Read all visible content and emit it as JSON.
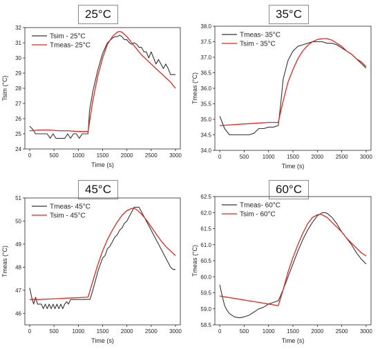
{
  "chart_data": [
    {
      "type": "line",
      "title": "25°C",
      "xlabel": "Time (s)",
      "ylabel": "Tsim (°C)",
      "xlim": [
        -100,
        3100
      ],
      "ylim": [
        24,
        32
      ],
      "xticks": [
        0,
        500,
        1000,
        1500,
        2000,
        2500,
        3000
      ],
      "yticks": [
        24,
        25,
        26,
        27,
        28,
        29,
        30,
        31,
        32
      ],
      "legend_position": "top-left",
      "series": [
        {
          "name": "Tsim - 25°C",
          "color": "#333333",
          "x": [
            0,
            60,
            120,
            180,
            240,
            300,
            360,
            420,
            480,
            540,
            600,
            660,
            720,
            780,
            840,
            900,
            960,
            1020,
            1080,
            1140,
            1200,
            1230,
            1300,
            1400,
            1500,
            1600,
            1700,
            1750,
            1800,
            1850,
            1900,
            1950,
            2000,
            2050,
            2100,
            2150,
            2200,
            2250,
            2300,
            2350,
            2400,
            2450,
            2500,
            2550,
            2600,
            2650,
            2700,
            2750,
            2800,
            2850,
            2900,
            2950,
            3000
          ],
          "y": [
            25.5,
            25.3,
            25.0,
            25.0,
            25.0,
            25.0,
            25.0,
            24.7,
            25.0,
            24.7,
            24.7,
            24.7,
            24.7,
            25.0,
            24.7,
            25.0,
            25.0,
            24.7,
            25.0,
            25.0,
            25.0,
            26.5,
            27.8,
            29.2,
            30.3,
            31.0,
            31.3,
            31.4,
            31.4,
            31.5,
            31.4,
            31.2,
            31.2,
            31.0,
            30.9,
            31.0,
            30.9,
            30.7,
            30.7,
            30.4,
            30.4,
            30.0,
            30.4,
            30.0,
            29.6,
            29.9,
            29.6,
            29.3,
            29.6,
            29.3,
            28.9,
            28.9,
            28.9
          ]
        },
        {
          "name": "Tmeas- 25°C",
          "color": "#e8231f",
          "x": [
            0,
            200,
            400,
            600,
            800,
            1000,
            1200,
            1300,
            1400,
            1500,
            1600,
            1700,
            1800,
            1850,
            1900,
            2000,
            2100,
            2200,
            2300,
            2400,
            2500,
            2600,
            2700,
            2800,
            2900,
            3000
          ],
          "y": [
            25.2,
            25.25,
            25.25,
            25.2,
            25.2,
            25.15,
            25.15,
            27.2,
            28.8,
            30.0,
            30.9,
            31.4,
            31.7,
            31.75,
            31.7,
            31.4,
            31.0,
            30.6,
            30.2,
            29.9,
            29.6,
            29.3,
            29.0,
            28.7,
            28.4,
            28.0
          ]
        }
      ]
    },
    {
      "type": "line",
      "title": "35°C",
      "xlabel": "Time (s)",
      "ylabel": "Tmeas (°C)",
      "xlim": [
        -100,
        3100
      ],
      "ylim": [
        34.0,
        38.0
      ],
      "xticks": [
        0,
        500,
        1000,
        1500,
        2000,
        2500,
        3000
      ],
      "yticks": [
        34.0,
        34.5,
        35.0,
        35.5,
        36.0,
        36.5,
        37.0,
        37.5,
        38.0
      ],
      "legend_position": "top-left",
      "series": [
        {
          "name": "Tmeas- 35°C",
          "color": "#333333",
          "x": [
            0,
            50,
            100,
            150,
            200,
            300,
            400,
            500,
            600,
            700,
            800,
            900,
            1000,
            1100,
            1200,
            1250,
            1300,
            1400,
            1500,
            1600,
            1700,
            1800,
            1900,
            2000,
            2100,
            2200,
            2300,
            2400,
            2500,
            2600,
            2700,
            2800,
            2900,
            3000
          ],
          "y": [
            35.1,
            34.9,
            34.7,
            34.6,
            34.5,
            34.5,
            34.5,
            34.5,
            34.5,
            34.55,
            34.7,
            34.7,
            34.75,
            34.75,
            34.8,
            35.5,
            36.3,
            36.9,
            37.2,
            37.35,
            37.4,
            37.45,
            37.5,
            37.5,
            37.5,
            37.45,
            37.45,
            37.4,
            37.3,
            37.2,
            37.1,
            36.95,
            36.8,
            36.65
          ]
        },
        {
          "name": "Tsim - 35°C",
          "color": "#e8231f",
          "x": [
            0,
            200,
            400,
            600,
            800,
            1000,
            1200,
            1300,
            1400,
            1500,
            1600,
            1700,
            1800,
            1900,
            2000,
            2100,
            2150,
            2200,
            2300,
            2400,
            2500,
            2600,
            2700,
            2800,
            2900,
            3000
          ],
          "y": [
            34.8,
            34.82,
            34.84,
            34.86,
            34.88,
            34.9,
            34.9,
            35.6,
            36.2,
            36.6,
            36.95,
            37.2,
            37.38,
            37.5,
            37.57,
            37.6,
            37.6,
            37.6,
            37.55,
            37.45,
            37.35,
            37.2,
            37.1,
            36.95,
            36.85,
            36.7
          ]
        }
      ]
    },
    {
      "type": "line",
      "title": "45°C",
      "xlabel": "Time (s)",
      "ylabel": "Tmeas (°C)",
      "xlim": [
        -100,
        3100
      ],
      "ylim": [
        45.5,
        51
      ],
      "xticks": [
        0,
        500,
        1000,
        1500,
        2000,
        2500,
        3000
      ],
      "yticks": [
        46,
        47,
        48,
        49,
        50,
        51
      ],
      "legend_position": "top-left",
      "series": [
        {
          "name": "Tmeas- 45°C",
          "color": "#333333",
          "x": [
            0,
            40,
            80,
            120,
            160,
            200,
            240,
            280,
            320,
            360,
            400,
            440,
            480,
            520,
            560,
            600,
            640,
            680,
            720,
            760,
            800,
            840,
            880,
            920,
            960,
            1000,
            1040,
            1080,
            1120,
            1160,
            1200,
            1240,
            1300,
            1350,
            1400,
            1450,
            1500,
            1550,
            1600,
            1650,
            1700,
            1750,
            1800,
            1850,
            1900,
            1950,
            2000,
            2050,
            2100,
            2150,
            2200,
            2250,
            2300,
            2350,
            2400,
            2450,
            2500,
            2550,
            2600,
            2650,
            2700,
            2750,
            2800,
            2850,
            2900,
            2950,
            3000
          ],
          "y": [
            47.1,
            46.7,
            46.4,
            46.7,
            46.4,
            46.4,
            46.4,
            46.2,
            46.4,
            46.2,
            46.4,
            46.2,
            46.4,
            46.2,
            46.4,
            46.2,
            46.4,
            46.2,
            46.4,
            46.5,
            46.4,
            46.6,
            46.6,
            46.6,
            46.6,
            46.6,
            46.6,
            46.6,
            46.6,
            46.6,
            46.6,
            46.6,
            47.0,
            47.4,
            47.8,
            48.1,
            48.4,
            48.5,
            48.8,
            48.9,
            49.1,
            49.3,
            49.4,
            49.6,
            49.7,
            49.9,
            50.0,
            50.2,
            50.4,
            50.6,
            50.6,
            50.6,
            50.4,
            50.2,
            50.0,
            49.8,
            49.6,
            49.4,
            49.2,
            49.0,
            48.8,
            48.6,
            48.4,
            48.2,
            48.0,
            47.9,
            47.9
          ]
        },
        {
          "name": "Tsim - 45°C",
          "color": "#e8231f",
          "x": [
            0,
            200,
            400,
            600,
            800,
            1000,
            1200,
            1300,
            1400,
            1500,
            1600,
            1700,
            1800,
            1900,
            2000,
            2100,
            2150,
            2200,
            2300,
            2400,
            2500,
            2600,
            2700,
            2800,
            2900,
            3000
          ],
          "y": [
            46.6,
            46.6,
            46.62,
            46.64,
            46.66,
            46.68,
            46.7,
            47.4,
            48.1,
            48.7,
            49.2,
            49.6,
            49.95,
            50.25,
            50.45,
            50.55,
            50.55,
            50.5,
            50.3,
            50.05,
            49.75,
            49.45,
            49.15,
            48.9,
            48.7,
            48.5
          ]
        }
      ]
    },
    {
      "type": "line",
      "title": "60°C",
      "xlabel": "Time (s)",
      "ylabel": "Tmeas (°C)",
      "xlim": [
        -100,
        3100
      ],
      "ylim": [
        58.5,
        62.5
      ],
      "xticks": [
        0,
        500,
        1000,
        1500,
        2000,
        2500,
        3000
      ],
      "yticks": [
        58.5,
        59.0,
        59.5,
        60.0,
        60.5,
        61.0,
        61.5,
        62.0,
        62.5
      ],
      "legend_position": "top-left",
      "series": [
        {
          "name": "Tmeas- 60°C",
          "color": "#333333",
          "x": [
            0,
            50,
            100,
            150,
            200,
            300,
            400,
            500,
            600,
            700,
            800,
            900,
            1000,
            1100,
            1200,
            1300,
            1400,
            1500,
            1600,
            1700,
            1800,
            1900,
            2000,
            2100,
            2150,
            2200,
            2300,
            2400,
            2500,
            2600,
            2700,
            2800,
            2900,
            3000
          ],
          "y": [
            59.75,
            59.4,
            59.1,
            58.95,
            58.85,
            58.75,
            58.72,
            58.75,
            58.8,
            58.9,
            59.0,
            59.05,
            59.15,
            59.2,
            59.25,
            59.6,
            60.0,
            60.4,
            60.8,
            61.15,
            61.45,
            61.7,
            61.9,
            62.0,
            62.0,
            61.98,
            61.85,
            61.65,
            61.4,
            61.2,
            61.0,
            60.75,
            60.55,
            60.4
          ]
        },
        {
          "name": "Tsim - 60°C",
          "color": "#e8231f",
          "x": [
            0,
            200,
            400,
            600,
            800,
            1000,
            1200,
            1300,
            1400,
            1500,
            1600,
            1700,
            1800,
            1900,
            2000,
            2050,
            2100,
            2200,
            2300,
            2400,
            2500,
            2600,
            2700,
            2800,
            2900,
            3000
          ],
          "y": [
            59.4,
            59.35,
            59.3,
            59.25,
            59.2,
            59.15,
            59.1,
            59.6,
            60.15,
            60.6,
            61.0,
            61.35,
            61.65,
            61.85,
            61.93,
            61.95,
            61.93,
            61.85,
            61.7,
            61.55,
            61.4,
            61.2,
            61.05,
            60.9,
            60.75,
            60.65
          ]
        }
      ]
    }
  ]
}
